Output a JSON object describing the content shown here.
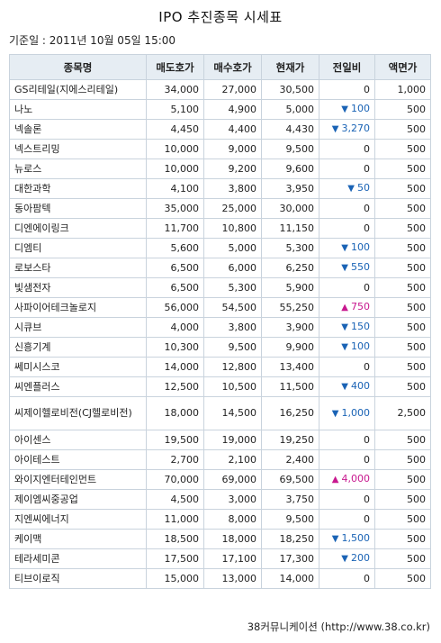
{
  "title": "IPO 추진종목 시세표",
  "date": "기준일 : 2011년 10월 05일 15:00",
  "columns": [
    "종목명",
    "매도호가",
    "매수호가",
    "현재가",
    "전일비",
    "액면가"
  ],
  "rows": [
    {
      "name": "GS리테일(지에스리테일)",
      "ask": "34,000",
      "bid": "27,000",
      "price": "30,500",
      "dir": "",
      "change": "0",
      "par": "1,000"
    },
    {
      "name": "나노",
      "ask": "5,100",
      "bid": "4,900",
      "price": "5,000",
      "dir": "down",
      "change": "100",
      "par": "500"
    },
    {
      "name": "넥솔론",
      "ask": "4,450",
      "bid": "4,400",
      "price": "4,430",
      "dir": "down",
      "change": "3,270",
      "par": "500"
    },
    {
      "name": "넥스트리밍",
      "ask": "10,000",
      "bid": "9,000",
      "price": "9,500",
      "dir": "",
      "change": "0",
      "par": "500"
    },
    {
      "name": "뉴로스",
      "ask": "10,000",
      "bid": "9,200",
      "price": "9,600",
      "dir": "",
      "change": "0",
      "par": "500"
    },
    {
      "name": "대한과학",
      "ask": "4,100",
      "bid": "3,800",
      "price": "3,950",
      "dir": "down",
      "change": "50",
      "par": "500"
    },
    {
      "name": "동아팜텍",
      "ask": "35,000",
      "bid": "25,000",
      "price": "30,000",
      "dir": "",
      "change": "0",
      "par": "500"
    },
    {
      "name": "디엔에이링크",
      "ask": "11,700",
      "bid": "10,800",
      "price": "11,150",
      "dir": "",
      "change": "0",
      "par": "500"
    },
    {
      "name": "디엠티",
      "ask": "5,600",
      "bid": "5,000",
      "price": "5,300",
      "dir": "down",
      "change": "100",
      "par": "500"
    },
    {
      "name": "로보스타",
      "ask": "6,500",
      "bid": "6,000",
      "price": "6,250",
      "dir": "down",
      "change": "550",
      "par": "500"
    },
    {
      "name": "빛샘전자",
      "ask": "6,500",
      "bid": "5,300",
      "price": "5,900",
      "dir": "",
      "change": "0",
      "par": "500"
    },
    {
      "name": "사파이어테크놀로지",
      "ask": "56,000",
      "bid": "54,500",
      "price": "55,250",
      "dir": "up",
      "change": "750",
      "par": "500"
    },
    {
      "name": "시큐브",
      "ask": "4,000",
      "bid": "3,800",
      "price": "3,900",
      "dir": "down",
      "change": "150",
      "par": "500"
    },
    {
      "name": "신흥기계",
      "ask": "10,300",
      "bid": "9,500",
      "price": "9,900",
      "dir": "down",
      "change": "100",
      "par": "500"
    },
    {
      "name": "쎄미시스코",
      "ask": "14,000",
      "bid": "12,800",
      "price": "13,400",
      "dir": "",
      "change": "0",
      "par": "500"
    },
    {
      "name": "씨엔플러스",
      "ask": "12,500",
      "bid": "10,500",
      "price": "11,500",
      "dir": "down",
      "change": "400",
      "par": "500"
    },
    {
      "name": "씨제이헬로비전(CJ헬로비전)",
      "ask": "18,000",
      "bid": "14,500",
      "price": "16,250",
      "dir": "down",
      "change": "1,000",
      "par": "2,500",
      "tall": true
    },
    {
      "name": "아이센스",
      "ask": "19,500",
      "bid": "19,000",
      "price": "19,250",
      "dir": "",
      "change": "0",
      "par": "500"
    },
    {
      "name": "아이테스트",
      "ask": "2,700",
      "bid": "2,100",
      "price": "2,400",
      "dir": "",
      "change": "0",
      "par": "500"
    },
    {
      "name": "와이지엔터테인먼트",
      "ask": "70,000",
      "bid": "69,000",
      "price": "69,500",
      "dir": "up",
      "change": "4,000",
      "par": "500"
    },
    {
      "name": "제이엠씨중공업",
      "ask": "4,500",
      "bid": "3,000",
      "price": "3,750",
      "dir": "",
      "change": "0",
      "par": "500"
    },
    {
      "name": "지엔씨에너지",
      "ask": "11,000",
      "bid": "8,000",
      "price": "9,500",
      "dir": "",
      "change": "0",
      "par": "500"
    },
    {
      "name": "케이맥",
      "ask": "18,500",
      "bid": "18,000",
      "price": "18,250",
      "dir": "down",
      "change": "1,500",
      "par": "500"
    },
    {
      "name": "테라세미콘",
      "ask": "17,500",
      "bid": "17,100",
      "price": "17,300",
      "dir": "down",
      "change": "200",
      "par": "500"
    },
    {
      "name": "티브이로직",
      "ask": "15,000",
      "bid": "13,000",
      "price": "14,000",
      "dir": "",
      "change": "0",
      "par": "500"
    }
  ],
  "icons": {
    "down": "▼",
    "up": "▲"
  },
  "colors": {
    "down": "#1a63b5",
    "up": "#c8188f",
    "header_bg": "#e6edf3",
    "border": "#c9d3dd"
  },
  "footer": "38커뮤니케이션 (http://www.38.co.kr)"
}
